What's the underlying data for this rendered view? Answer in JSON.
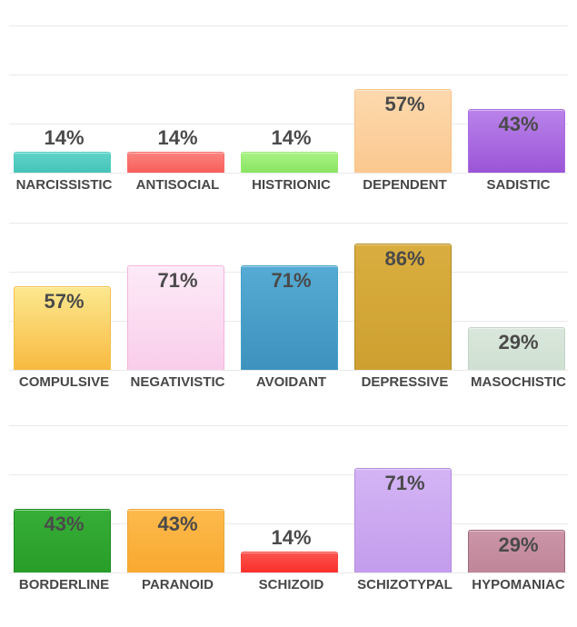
{
  "page": {
    "background_color": "#ffffff",
    "value_label_color": "#4a4a4a",
    "category_label_color": "#474747",
    "gridline_color": "#e9e9e9"
  },
  "chart_data": [
    {
      "type": "bar",
      "title": "",
      "xlabel": "",
      "ylabel": "",
      "ylim": [
        0,
        100
      ],
      "grid": true,
      "grid_divisions": 3,
      "legend": "none",
      "categories": [
        "NARCISSISTIC",
        "ANTISOCIAL",
        "HISTRIONIC",
        "DEPENDENT",
        "SADISTIC"
      ],
      "values": [
        14,
        14,
        14,
        57,
        43
      ],
      "value_labels": [
        "14%",
        "14%",
        "14%",
        "57%",
        "43%"
      ],
      "bar_colors": [
        {
          "top": "#5fd4c9",
          "bottom": "#45c3b8",
          "border": "#4fccc0"
        },
        {
          "top": "#fb827d",
          "bottom": "#f85e59",
          "border": "#f96d68"
        },
        {
          "top": "#a9f184",
          "bottom": "#88e561",
          "border": "#97ec70"
        },
        {
          "top": "#fdd9ae",
          "bottom": "#fbc88f",
          "border": "#f9c186"
        },
        {
          "top": "#b983ea",
          "bottom": "#9b55d7",
          "border": "#a96de1"
        }
      ]
    },
    {
      "type": "bar",
      "title": "",
      "xlabel": "",
      "ylabel": "",
      "ylim": [
        0,
        100
      ],
      "grid": true,
      "grid_divisions": 3,
      "legend": "none",
      "categories": [
        "COMPULSIVE",
        "NEGATIVISTIC",
        "AVOIDANT",
        "DEPRESSIVE",
        "MASOCHISTIC"
      ],
      "values": [
        57,
        71,
        71,
        86,
        29
      ],
      "value_labels": [
        "57%",
        "71%",
        "71%",
        "86%",
        "29%"
      ],
      "bar_colors": [
        {
          "top": "#fce88f",
          "bottom": "#f8ba40",
          "border": "#f3bf4a"
        },
        {
          "top": "#fdeaf7",
          "bottom": "#f9cdeb",
          "border": "#f6b2de"
        },
        {
          "top": "#55abd3",
          "bottom": "#3d92be",
          "border": "#48a0c9"
        },
        {
          "top": "#d9ad3f",
          "bottom": "#cda030",
          "border": "#b28b28"
        },
        {
          "top": "#dae7dc",
          "bottom": "#cfe0d2",
          "border": "#c0d5c6"
        }
      ]
    },
    {
      "type": "bar",
      "title": "",
      "xlabel": "",
      "ylabel": "",
      "ylim": [
        0,
        100
      ],
      "grid": true,
      "grid_divisions": 3,
      "legend": "none",
      "categories": [
        "BORDERLINE",
        "PARANOID",
        "SCHIZOID",
        "SCHIZOTYPAL",
        "HYPOMANIAC"
      ],
      "values": [
        43,
        43,
        14,
        71,
        29
      ],
      "value_labels": [
        "43%",
        "43%",
        "14%",
        "71%",
        "29%"
      ],
      "bar_colors": [
        {
          "top": "#37ae37",
          "bottom": "#289e28",
          "border": "#1f8c1f"
        },
        {
          "top": "#fcba4c",
          "bottom": "#f9a930",
          "border": "#eda637"
        },
        {
          "top": "#fc544f",
          "bottom": "#fa2e29",
          "border": "#fb433e"
        },
        {
          "top": "#d4b4f5",
          "bottom": "#c39dec",
          "border": "#b28be1"
        },
        {
          "top": "#cc95a8",
          "bottom": "#bf8598",
          "border": "#9f6a7e"
        }
      ]
    }
  ]
}
